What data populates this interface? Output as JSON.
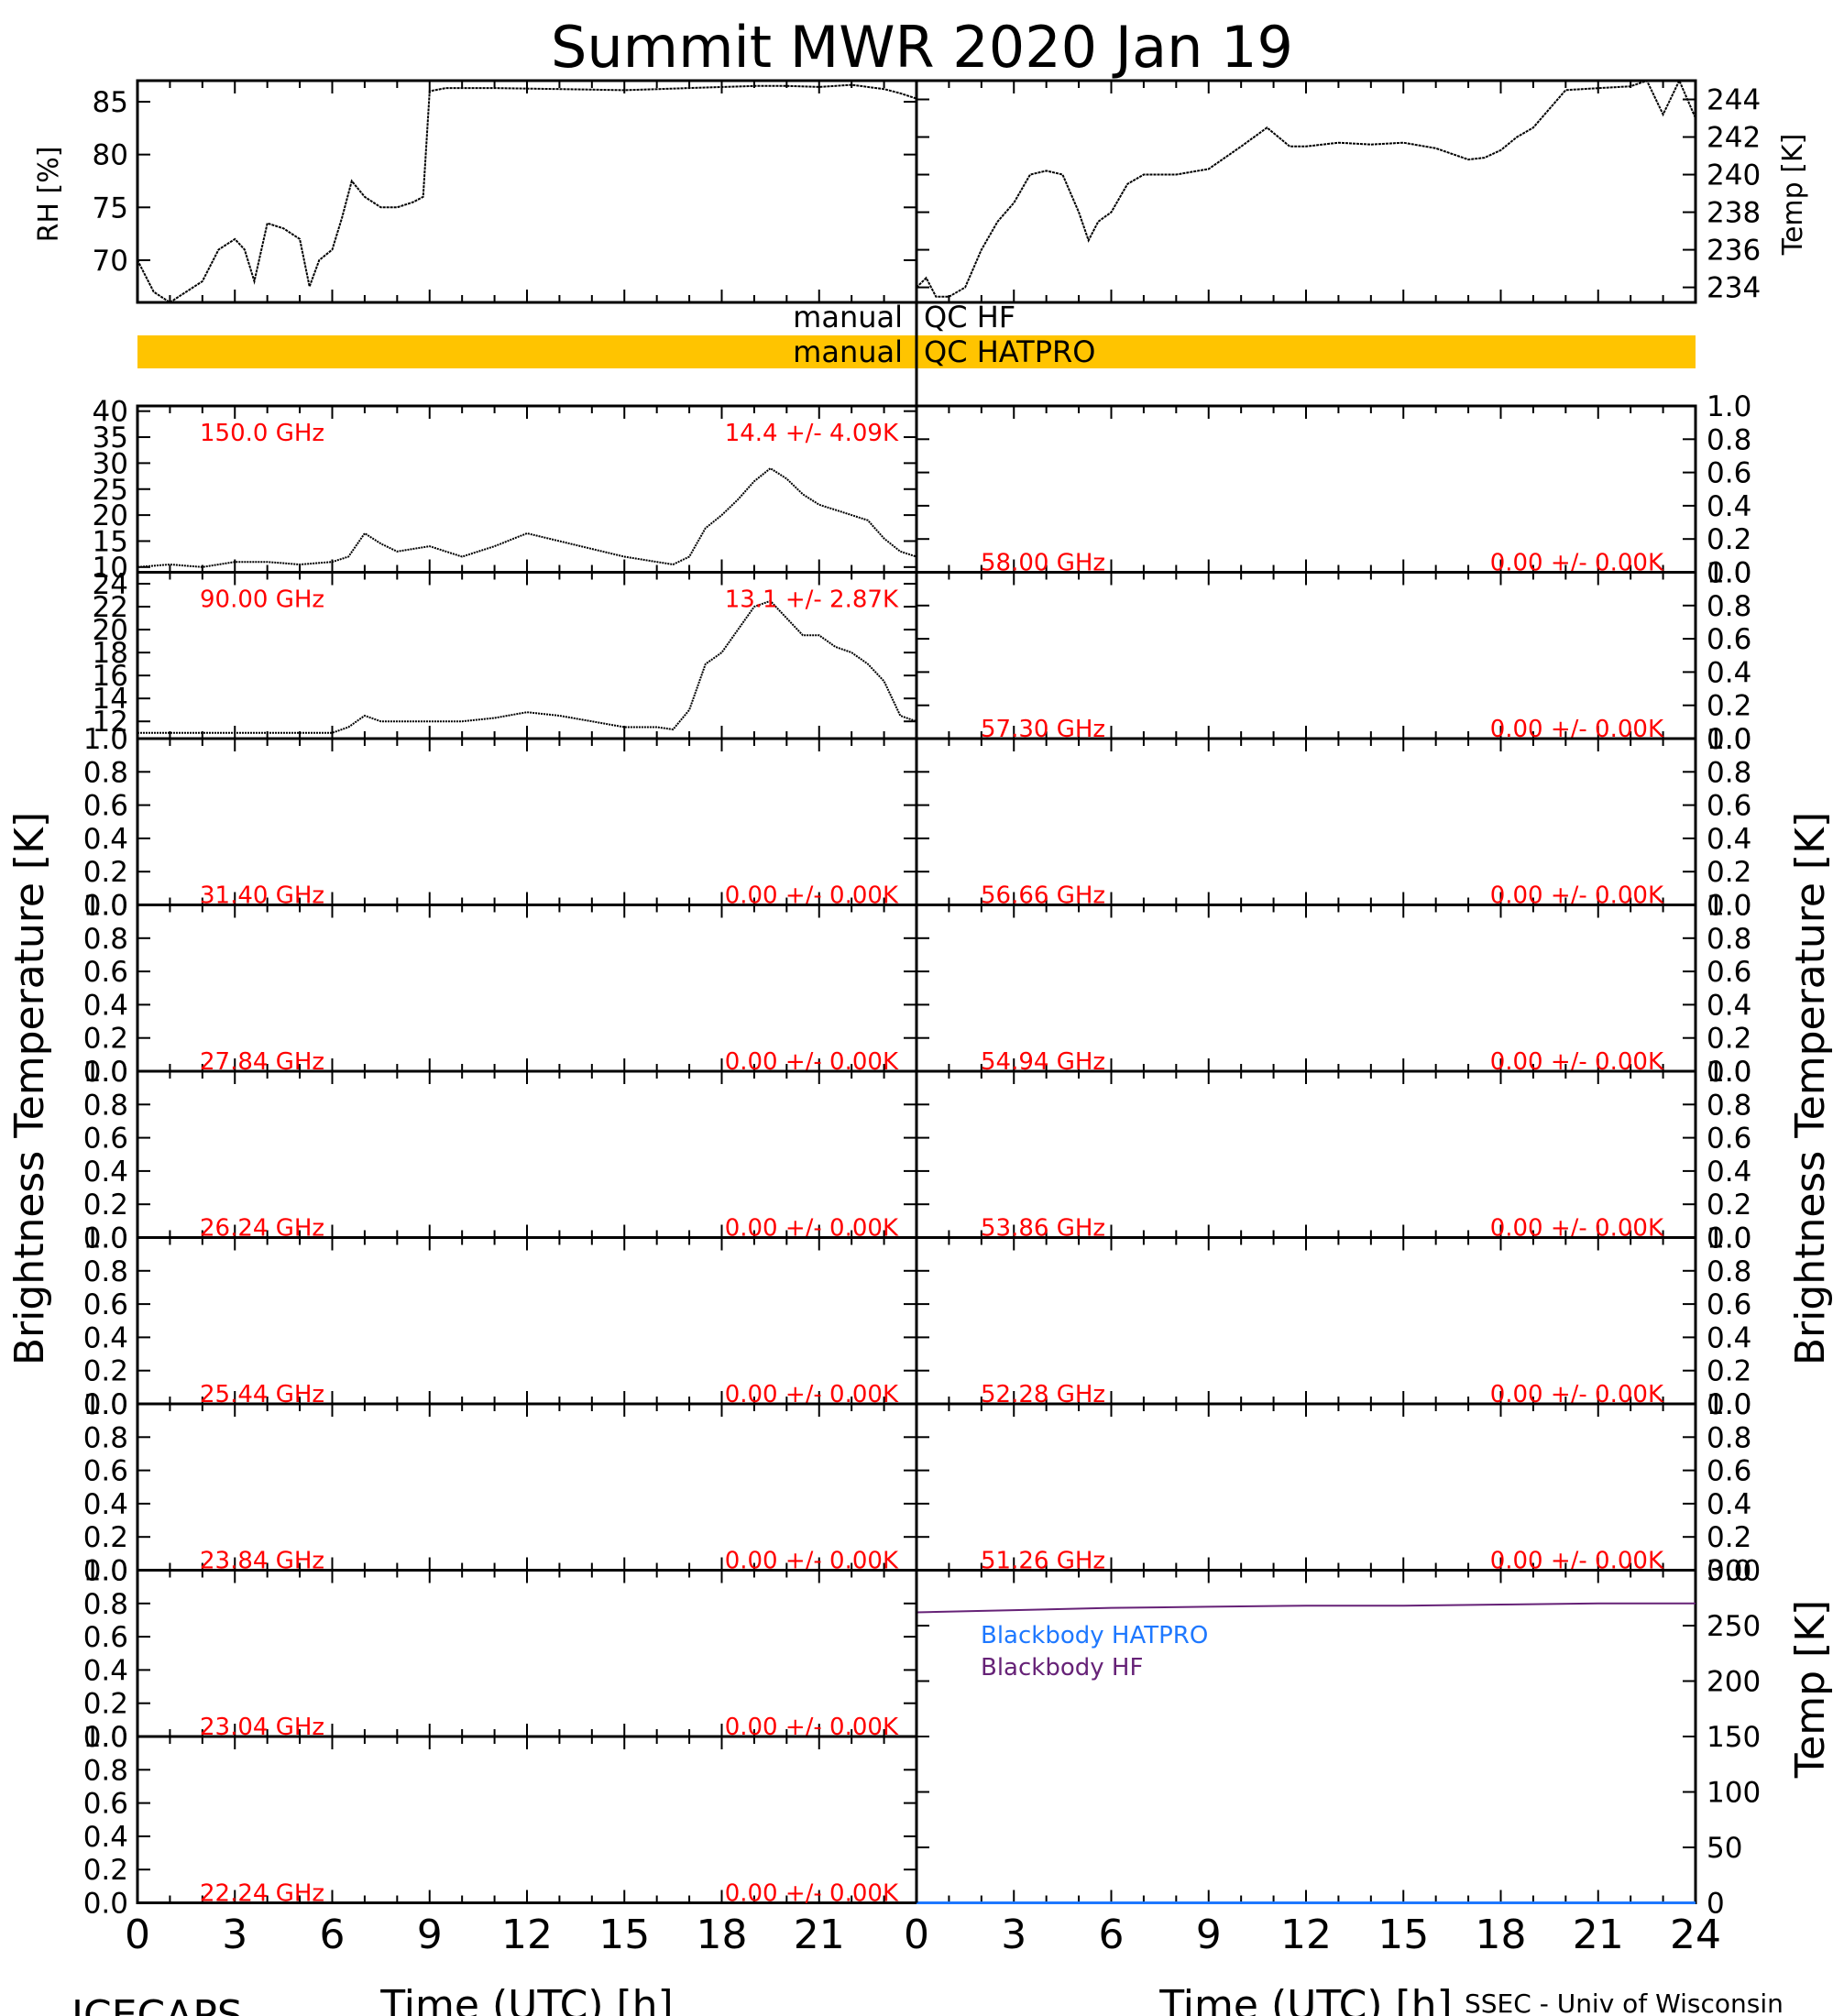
{
  "title": "Summit MWR 2020 Jan 19",
  "footer": {
    "left": "ICECAPS",
    "right": "SSEC - Univ of Wisconsin"
  },
  "xaxis": {
    "label": "Time (UTC) [h]",
    "ticks": [
      "0",
      "3",
      "6",
      "9",
      "12",
      "15",
      "18",
      "21"
    ],
    "ticks_right": [
      "0",
      "3",
      "6",
      "9",
      "12",
      "15",
      "18",
      "21",
      "24"
    ],
    "range": [
      0,
      24
    ]
  },
  "ylabels": {
    "left": "Brightness Temperature [K]",
    "right": "Brightness Temperature [K]"
  },
  "qc": {
    "hf_left": "manual",
    "hf_right": "QC HF",
    "hatpro_left": "manual",
    "hatpro_right": "QC HATPRO",
    "hatpro_color": "#FFC400"
  },
  "met": {
    "rh_label": "RH [%]",
    "rh_ticks": [
      "70",
      "75",
      "80",
      "85"
    ],
    "temp_label": "Temp [K]",
    "temp_ticks": [
      "234",
      "236",
      "238",
      "240",
      "242",
      "244"
    ]
  },
  "blackbody": {
    "label": "Temp [K]",
    "ticks": [
      "0",
      "50",
      "100",
      "150",
      "200",
      "250",
      "300"
    ],
    "legend_hatpro": "Blackbody HATPRO",
    "legend_hf": "Blackbody HF",
    "hatpro_color": "#1E78FF",
    "hf_color": "#662277"
  },
  "series_color": "#000000",
  "label_color": "#FF0000",
  "chart_data": [
    {
      "type": "line",
      "name": "RH",
      "ylabel": "RH [%]",
      "ylim": [
        66,
        87
      ],
      "x": [
        0,
        0.5,
        1,
        1.5,
        2,
        2.5,
        3,
        3.3,
        3.6,
        4,
        4.5,
        5,
        5.3,
        5.6,
        6,
        6.3,
        6.6,
        7,
        7.5,
        8,
        8.5,
        8.8,
        9,
        9.5,
        11,
        13,
        15,
        17,
        19,
        20,
        21,
        22,
        23,
        23.5,
        24
      ],
      "y": [
        70,
        67,
        66,
        67,
        68,
        71,
        72,
        71,
        68,
        73.5,
        73,
        72,
        67.5,
        70,
        71,
        74,
        77.5,
        76,
        75,
        75,
        75.5,
        76,
        86,
        86.3,
        86.3,
        86.2,
        86.1,
        86.3,
        86.5,
        86.5,
        86.4,
        86.6,
        86.2,
        85.8,
        85.3
      ]
    },
    {
      "type": "line",
      "name": "Temp",
      "ylabel": "Temp [K]",
      "ylim": [
        233.2,
        245
      ],
      "x": [
        0,
        0.3,
        0.6,
        1,
        1.5,
        2,
        2.5,
        3,
        3.5,
        4,
        4.5,
        5,
        5.3,
        5.6,
        6,
        6.5,
        7,
        8,
        9,
        10,
        10.8,
        11.5,
        12,
        13,
        14,
        15,
        16,
        17,
        17.5,
        18,
        18.5,
        19,
        19.5,
        20,
        21,
        22,
        22.5,
        23,
        23.5,
        24
      ],
      "y": [
        234,
        234.5,
        233.5,
        233.5,
        234,
        236,
        237.5,
        238.5,
        240,
        240.2,
        240,
        238,
        236.5,
        237.5,
        238,
        239.5,
        240,
        240,
        240.3,
        241.5,
        242.5,
        241.5,
        241.5,
        241.7,
        241.6,
        241.7,
        241.4,
        240.8,
        240.9,
        241.3,
        242,
        242.5,
        243.5,
        244.5,
        244.6,
        244.7,
        245,
        243.2,
        245,
        243
      ]
    },
    {
      "type": "line",
      "label": "150.0 GHz",
      "stats": "14.4 +/- 4.09K",
      "ylim": [
        9,
        41
      ],
      "ticks": [
        "10",
        "15",
        "20",
        "25",
        "30",
        "35",
        "40"
      ],
      "x": [
        0,
        1,
        2,
        3,
        4,
        5,
        6,
        6.5,
        7,
        7.5,
        8,
        9,
        10,
        11,
        12,
        13,
        14,
        15,
        16,
        16.5,
        17,
        17.5,
        18,
        18.5,
        19,
        19.5,
        20,
        20.5,
        21,
        21.5,
        22,
        22.5,
        23,
        23.5,
        24
      ],
      "y": [
        10,
        10.5,
        10,
        11,
        11,
        10.5,
        11,
        12,
        16.5,
        14.5,
        13,
        14,
        12,
        14,
        16.5,
        15,
        13.5,
        12,
        11,
        10.5,
        12,
        17.5,
        20,
        23,
        26.5,
        29,
        27,
        24,
        22,
        21,
        20,
        19,
        15.5,
        13,
        12
      ]
    },
    {
      "type": "line",
      "label": "90.00 GHz",
      "stats": "13.1 +/- 2.87K",
      "ylim": [
        10.5,
        25
      ],
      "ticks": [
        "12",
        "14",
        "16",
        "18",
        "20",
        "22",
        "24"
      ],
      "x": [
        0,
        1,
        2,
        3,
        4,
        5,
        6,
        6.5,
        7,
        7.5,
        8,
        9,
        10,
        11,
        12,
        13,
        14,
        15,
        16,
        16.5,
        17,
        17.5,
        18,
        18.5,
        19,
        19.5,
        20,
        20.5,
        21,
        21.5,
        22,
        22.5,
        23,
        23.5,
        24
      ],
      "y": [
        11,
        11,
        11,
        11,
        11,
        11,
        11,
        11.5,
        12.5,
        12,
        12,
        12,
        12,
        12.3,
        12.8,
        12.5,
        12,
        11.5,
        11.5,
        11.3,
        13,
        17,
        18,
        20,
        22,
        22.5,
        21,
        19.5,
        19.5,
        18.5,
        18,
        17,
        15.5,
        12.5,
        12
      ]
    },
    {
      "type": "line",
      "label": "58.00 GHz",
      "stats": "0.00 +/- 0.00K",
      "ylim": [
        0,
        1
      ],
      "ticks": [
        "0.0",
        "0.2",
        "0.4",
        "0.6",
        "0.8",
        "1.0"
      ],
      "x": [],
      "y": []
    },
    {
      "type": "line",
      "label": "57.30 GHz",
      "stats": "0.00 +/- 0.00K",
      "ylim": [
        0,
        1
      ],
      "ticks": [
        "0.0",
        "0.2",
        "0.4",
        "0.6",
        "0.8",
        "1.0"
      ],
      "x": [],
      "y": []
    },
    {
      "type": "line",
      "label": "31.40 GHz",
      "stats": "0.00 +/- 0.00K",
      "ylim": [
        0,
        1
      ],
      "ticks": [
        "0.0",
        "0.2",
        "0.4",
        "0.6",
        "0.8",
        "1.0"
      ],
      "x": [],
      "y": []
    },
    {
      "type": "line",
      "label": "56.66 GHz",
      "stats": "0.00 +/- 0.00K",
      "ylim": [
        0,
        1
      ],
      "ticks": [
        "0.0",
        "0.2",
        "0.4",
        "0.6",
        "0.8",
        "1.0"
      ],
      "x": [],
      "y": []
    },
    {
      "type": "line",
      "label": "27.84 GHz",
      "stats": "0.00 +/- 0.00K",
      "ylim": [
        0,
        1
      ],
      "ticks": [
        "0.0",
        "0.2",
        "0.4",
        "0.6",
        "0.8",
        "1.0"
      ],
      "x": [],
      "y": []
    },
    {
      "type": "line",
      "label": "54.94 GHz",
      "stats": "0.00 +/- 0.00K",
      "ylim": [
        0,
        1
      ],
      "ticks": [
        "0.0",
        "0.2",
        "0.4",
        "0.6",
        "0.8",
        "1.0"
      ],
      "x": [],
      "y": []
    },
    {
      "type": "line",
      "label": "26.24 GHz",
      "stats": "0.00 +/- 0.00K",
      "ylim": [
        0,
        1
      ],
      "ticks": [
        "0.0",
        "0.2",
        "0.4",
        "0.6",
        "0.8",
        "1.0"
      ],
      "x": [],
      "y": []
    },
    {
      "type": "line",
      "label": "53.86 GHz",
      "stats": "0.00 +/- 0.00K",
      "ylim": [
        0,
        1
      ],
      "ticks": [
        "0.0",
        "0.2",
        "0.4",
        "0.6",
        "0.8",
        "1.0"
      ],
      "x": [],
      "y": []
    },
    {
      "type": "line",
      "label": "25.44 GHz",
      "stats": "0.00 +/- 0.00K",
      "ylim": [
        0,
        1
      ],
      "ticks": [
        "0.0",
        "0.2",
        "0.4",
        "0.6",
        "0.8",
        "1.0"
      ],
      "x": [],
      "y": []
    },
    {
      "type": "line",
      "label": "52.28 GHz",
      "stats": "0.00 +/- 0.00K",
      "ylim": [
        0,
        1
      ],
      "ticks": [
        "0.0",
        "0.2",
        "0.4",
        "0.6",
        "0.8",
        "1.0"
      ],
      "x": [],
      "y": []
    },
    {
      "type": "line",
      "label": "23.84 GHz",
      "stats": "0.00 +/- 0.00K",
      "ylim": [
        0,
        1
      ],
      "ticks": [
        "0.0",
        "0.2",
        "0.4",
        "0.6",
        "0.8",
        "1.0"
      ],
      "x": [],
      "y": []
    },
    {
      "type": "line",
      "label": "51.26 GHz",
      "stats": "0.00 +/- 0.00K",
      "ylim": [
        0,
        1
      ],
      "ticks": [
        "0.0",
        "0.2",
        "0.4",
        "0.6",
        "0.8",
        "1.0"
      ],
      "x": [],
      "y": []
    },
    {
      "type": "line",
      "label": "23.04 GHz",
      "stats": "0.00 +/- 0.00K",
      "ylim": [
        0,
        1
      ],
      "ticks": [
        "0.0",
        "0.2",
        "0.4",
        "0.6",
        "0.8",
        "1.0"
      ],
      "x": [],
      "y": []
    },
    {
      "type": "line",
      "label": "22.24 GHz",
      "stats": "0.00 +/- 0.00K",
      "ylim": [
        0,
        1
      ],
      "ticks": [
        "0.0",
        "0.2",
        "0.4",
        "0.6",
        "0.8",
        "1.0"
      ],
      "x": [],
      "y": []
    },
    {
      "type": "line",
      "name": "Blackbody HF",
      "ylabel": "Temp [K]",
      "ylim": [
        0,
        300
      ],
      "x": [
        0,
        3,
        6,
        9,
        12,
        15,
        18,
        21,
        24
      ],
      "y": [
        262,
        264,
        266,
        267,
        268,
        268,
        269,
        270,
        270
      ]
    },
    {
      "type": "line",
      "name": "Blackbody HATPRO",
      "ylim": [
        0,
        300
      ],
      "x": [
        0,
        24
      ],
      "y": [
        0,
        0
      ]
    }
  ]
}
